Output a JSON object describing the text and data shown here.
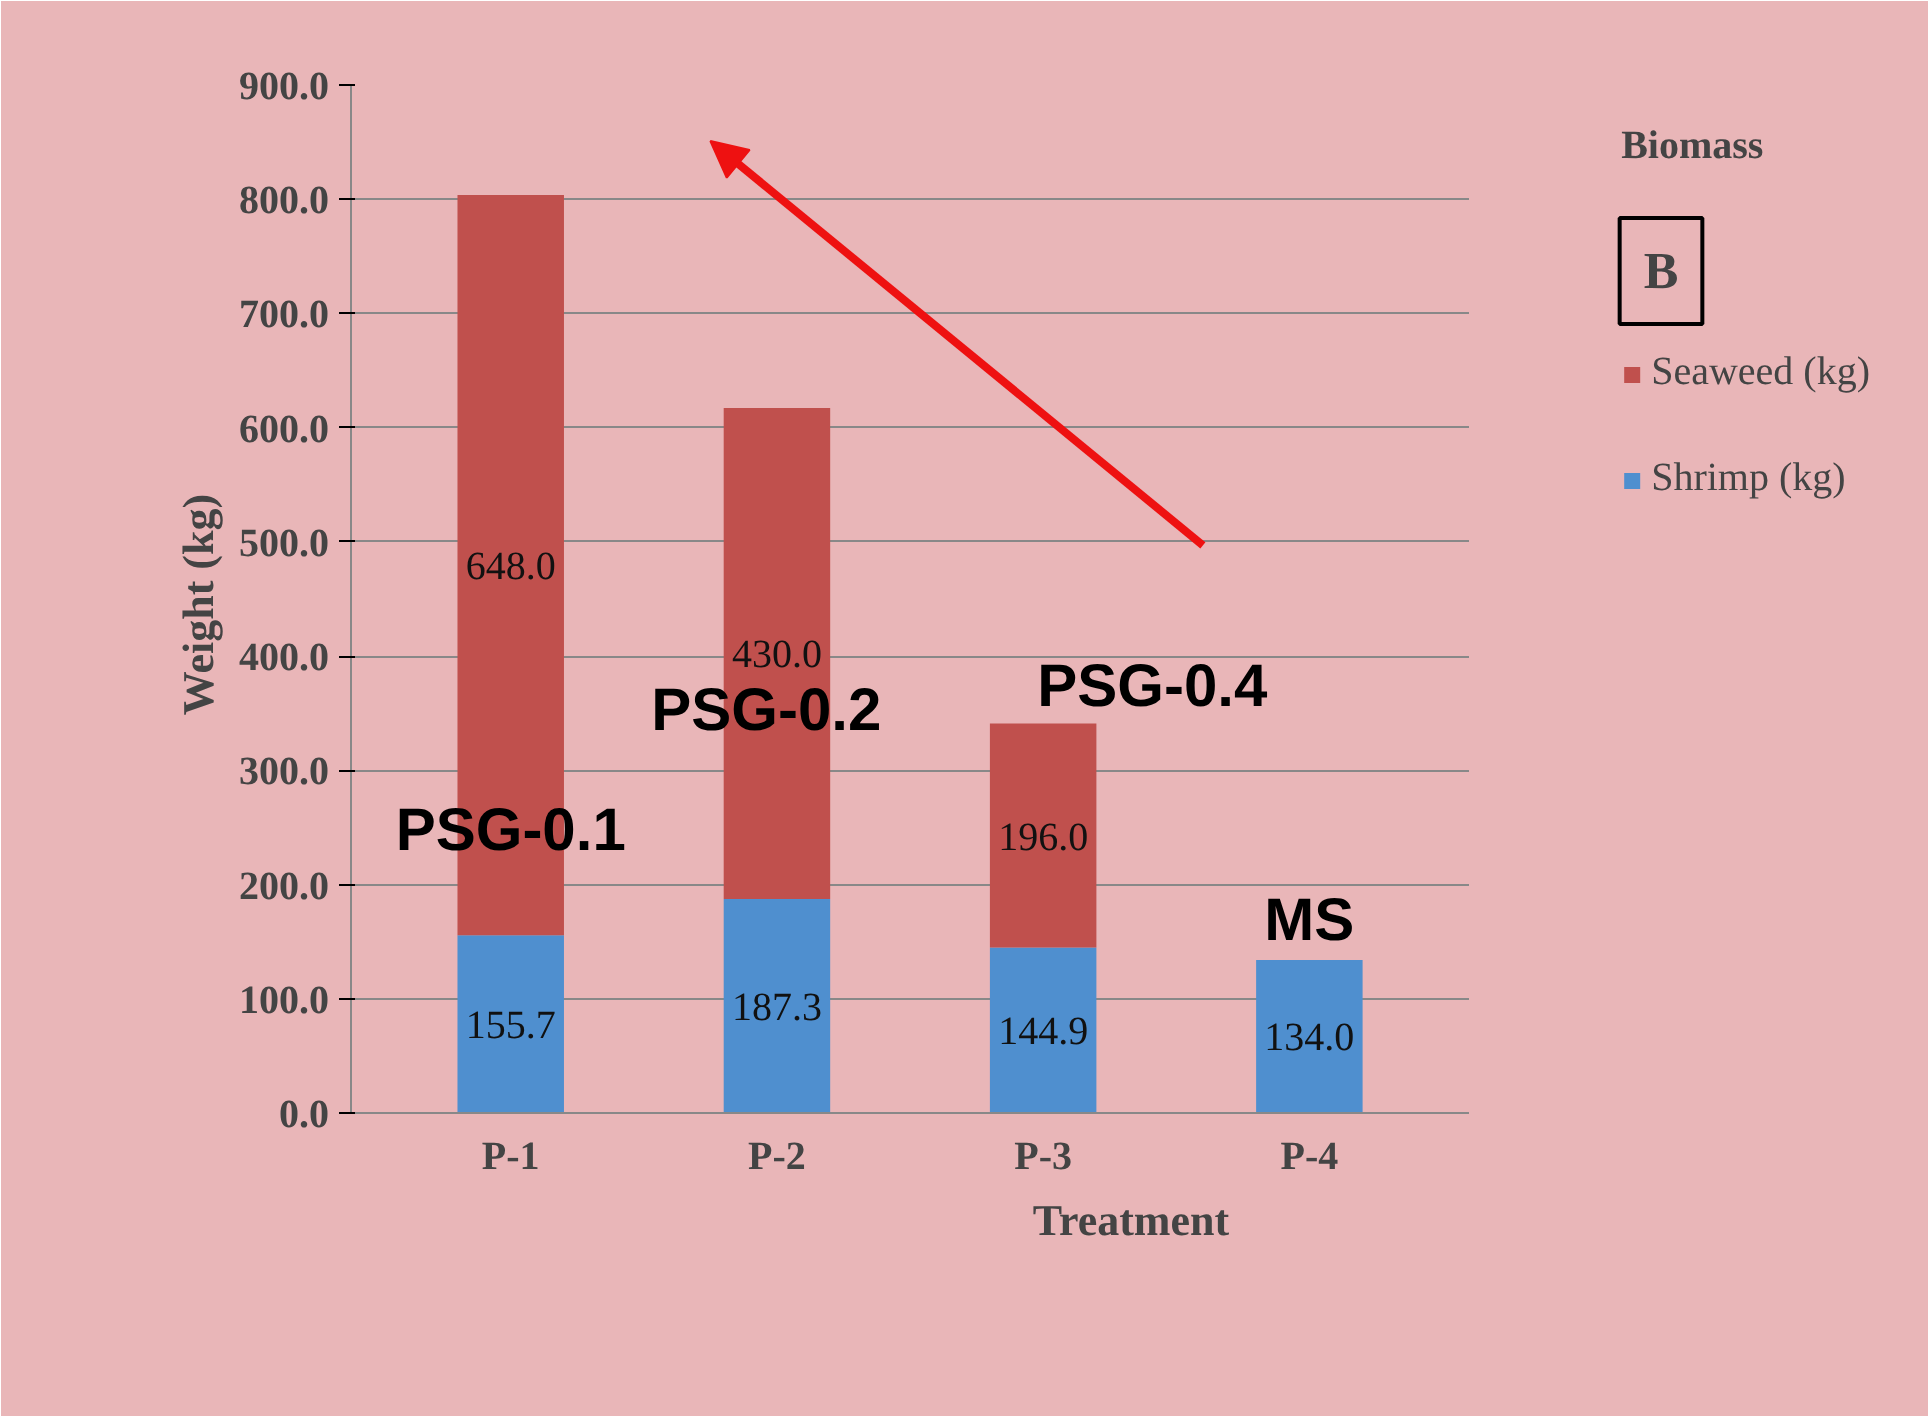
{
  "chart_data": {
    "type": "bar",
    "stacked": true,
    "xlabel": "Treatment",
    "ylabel": "Weight  (kg)",
    "legend_title": "Biomass",
    "categories": [
      "P-1",
      "P-2",
      "P-3",
      "P-4"
    ],
    "series": [
      {
        "name": "Shrimp (kg)",
        "color": "#4f8fcf",
        "values": [
          155.7,
          187.3,
          144.9,
          134.0
        ],
        "value_labels": [
          "155.7",
          "187.3",
          "144.9",
          "134.0"
        ]
      },
      {
        "name": "Seaweed (kg)",
        "color": "#c0504d",
        "values": [
          648.0,
          430.0,
          196.0,
          null
        ],
        "value_labels": [
          "648.0",
          "430.0",
          "196.0",
          null
        ]
      }
    ],
    "ylim": [
      0,
      900
    ],
    "yticks": [
      {
        "value": 0,
        "label": "0.0"
      },
      {
        "value": 100,
        "label": "100.0"
      },
      {
        "value": 200,
        "label": "200.0"
      },
      {
        "value": 300,
        "label": "300.0"
      },
      {
        "value": 400,
        "label": "400.0"
      },
      {
        "value": 500,
        "label": "500.0"
      },
      {
        "value": 600,
        "label": "600.0"
      },
      {
        "value": 700,
        "label": "700.0"
      },
      {
        "value": 800,
        "label": "800.0"
      },
      {
        "value": 900,
        "label": "900.0"
      }
    ],
    "grid": "y",
    "legend": "right",
    "annotations": [
      "PSG-0.1",
      "PSG-0.2",
      "PSG-0.4",
      "MS",
      "B"
    ]
  }
}
